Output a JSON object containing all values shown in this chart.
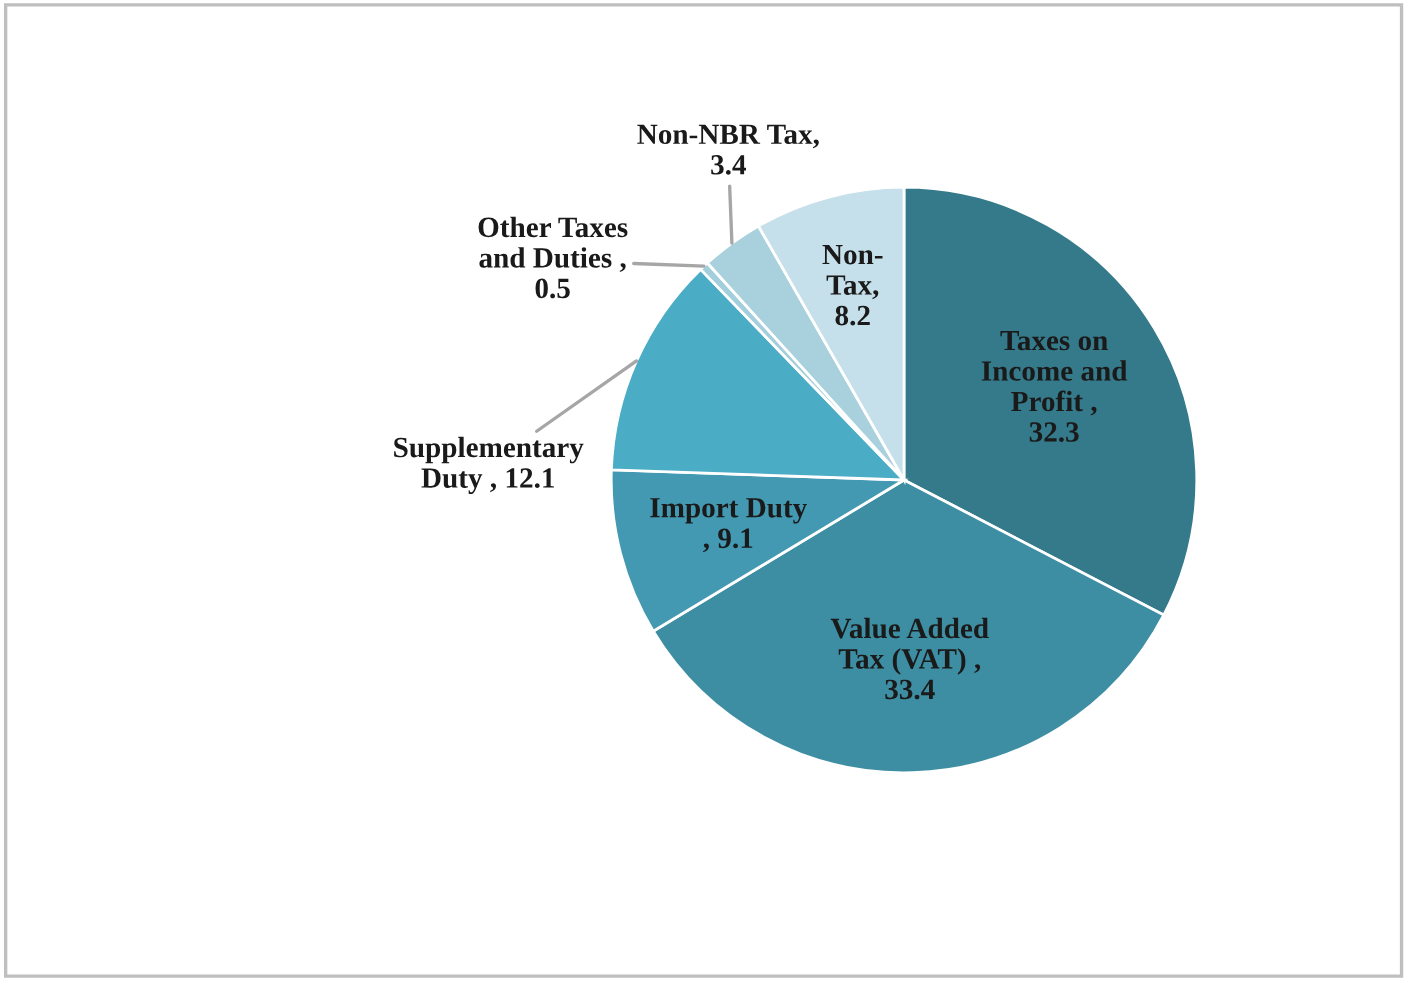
{
  "chart_data": {
    "type": "pie",
    "categories": [
      "Taxes on Income and Profit",
      "Value Added Tax (VAT)",
      "Import Duty",
      "Supplementary Duty",
      "Other Taxes and Duties",
      "Non-NBR Tax",
      "Non-Tax"
    ],
    "values": [
      32.3,
      33.4,
      9.1,
      12.1,
      0.5,
      3.4,
      8.2
    ],
    "colors": [
      "#347a8a",
      "#3d8da3",
      "#4399b1",
      "#4bacc6",
      "#a3cedb",
      "#a9d0dd",
      "#c5e0ea"
    ],
    "value_labels": [
      ", 32.3",
      ", 33.4",
      ", 9.1",
      ", 12.1",
      ", 0.5",
      ", 3.4",
      ", 8.2"
    ],
    "legend": false
  }
}
